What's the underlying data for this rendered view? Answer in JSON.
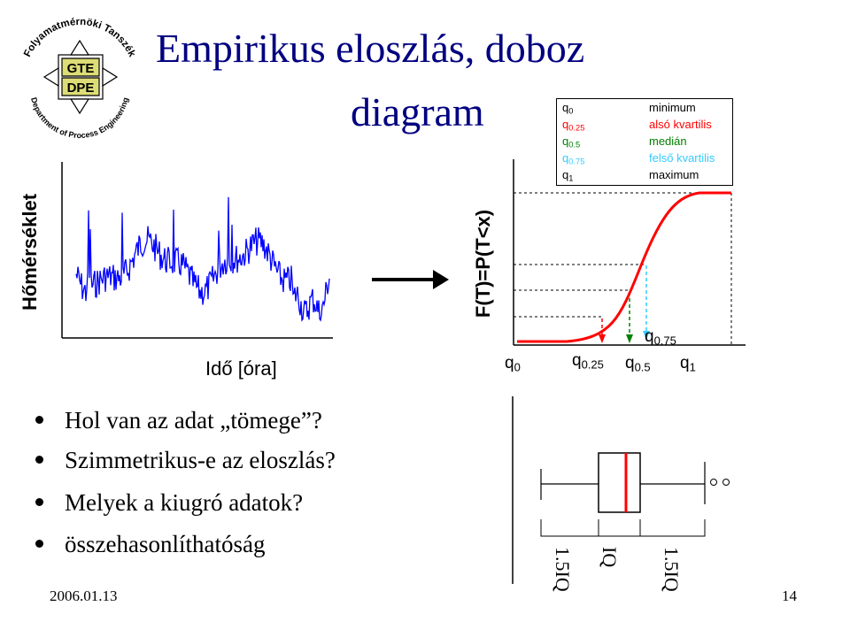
{
  "title": {
    "line1": "Empirikus eloszlás, doboz",
    "line2": "diagram"
  },
  "logo": {
    "top_text": "Folyamatmérnöki Tanszék",
    "bottom_text": "Department of Process Engineering",
    "center_text_1": "GTE",
    "center_text_2": "DPE"
  },
  "left_plot": {
    "ylabel": "Hőmérséklet",
    "xlabel": "Idő [óra]",
    "color": "#0000ff"
  },
  "cdf_plot": {
    "ylabel": "F(T)=P(T<x)",
    "curve_color": "#ff0000",
    "xticks": [
      {
        "base": "q",
        "sub": "0"
      },
      {
        "base": "q",
        "sub": "0.25"
      },
      {
        "base": "q",
        "sub": "0.5"
      },
      {
        "base": "q",
        "sub": "1"
      }
    ],
    "q075_label": {
      "base": "q",
      "sub": "0.75"
    }
  },
  "legend": {
    "rows": [
      {
        "base": "q",
        "sub": "0",
        "desc": "minimum",
        "color": "#000000"
      },
      {
        "base": "q",
        "sub": "0.25",
        "desc": "alsó kvartilis",
        "color": "#ff0000"
      },
      {
        "base": "q",
        "sub": "0.5",
        "desc": "medián",
        "color": "#008000"
      },
      {
        "base": "q",
        "sub": "0.75",
        "desc": "felső kvartilis",
        "color": "#33ccff"
      },
      {
        "base": "q",
        "sub": "1",
        "desc": "maximum",
        "color": "#000000"
      }
    ]
  },
  "boxplot": {
    "median_color": "#ff0000",
    "label_left": "1.5IQ",
    "label_mid": "IQ",
    "label_right": "1.5IQ"
  },
  "bullets": [
    "Hol van az adat „tömege”?",
    "Szimmetrikus-e az eloszlás?",
    "Melyek a kiugró adatok?",
    "összehasonlíthatóság"
  ],
  "footer": {
    "date": "2006.01.13",
    "page": "14"
  }
}
